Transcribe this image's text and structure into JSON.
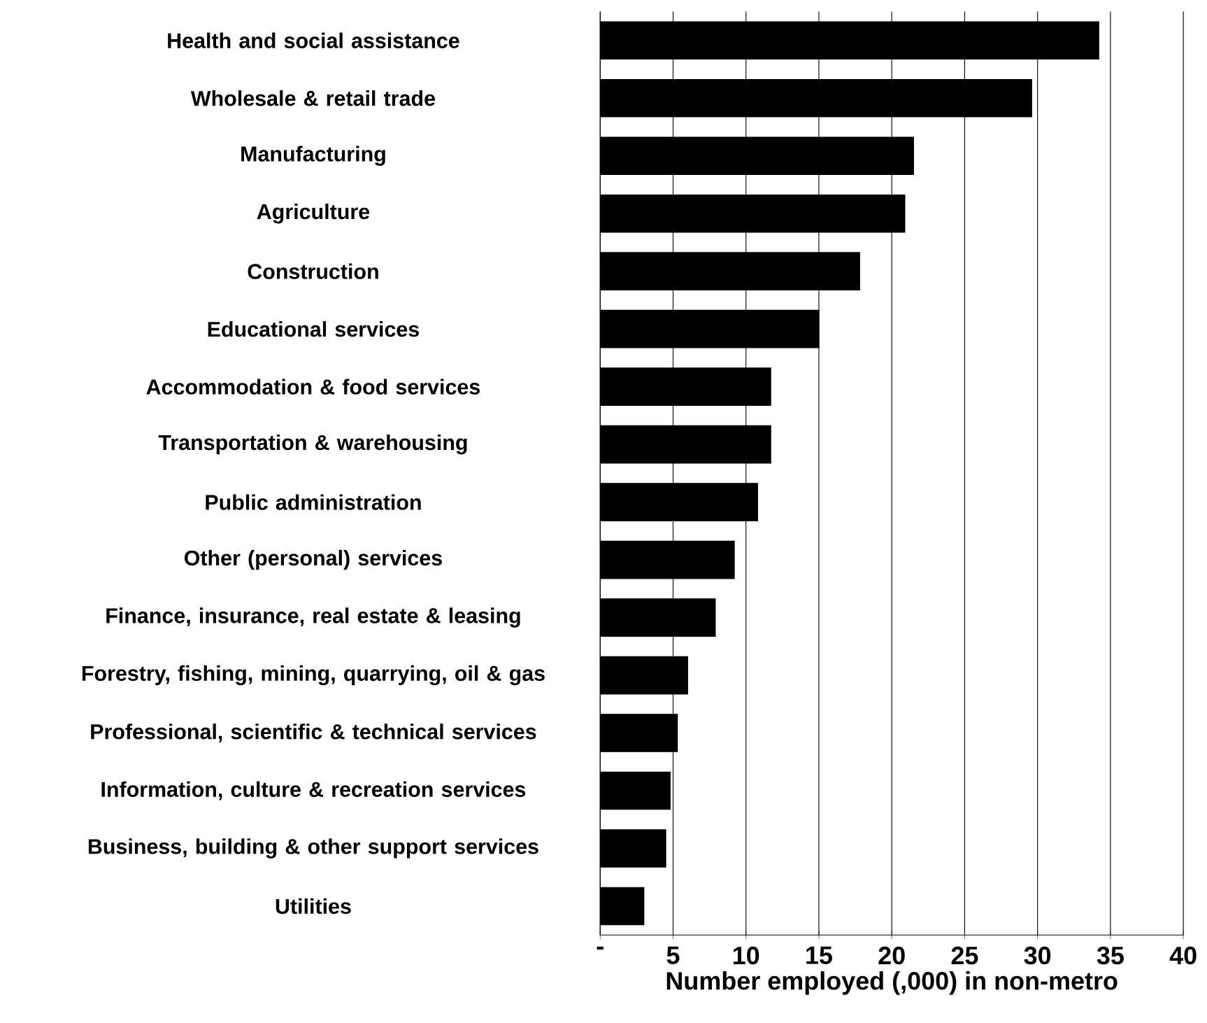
{
  "chart_data": {
    "type": "bar",
    "orientation": "horizontal",
    "xlabel": "Number employed (,000) in non-metro",
    "categories": [
      "Health and social assistance",
      "Wholesale & retail trade",
      "Manufacturing",
      "Agriculture",
      "Construction",
      "Educational services",
      "Accommodation & food services",
      "Transportation & warehousing",
      "Public administration",
      "Other (personal) services",
      "Finance, insurance, real estate & leasing",
      "Forestry, fishing, mining, quarrying, oil & gas",
      "Professional, scientific & technical services",
      "Information, culture & recreation services",
      "Business, building & other support services",
      "Utilities"
    ],
    "values": [
      34.2,
      29.6,
      21.5,
      20.9,
      17.8,
      15.0,
      11.7,
      11.7,
      10.8,
      9.2,
      7.9,
      6.0,
      5.3,
      4.8,
      4.5,
      3.0
    ],
    "color": "#000000",
    "xlim": [
      0,
      40
    ],
    "xticks": [
      {
        "value": 0,
        "label": "-"
      },
      5,
      10,
      15,
      20,
      25,
      30,
      35,
      40
    ],
    "grid": "x"
  }
}
